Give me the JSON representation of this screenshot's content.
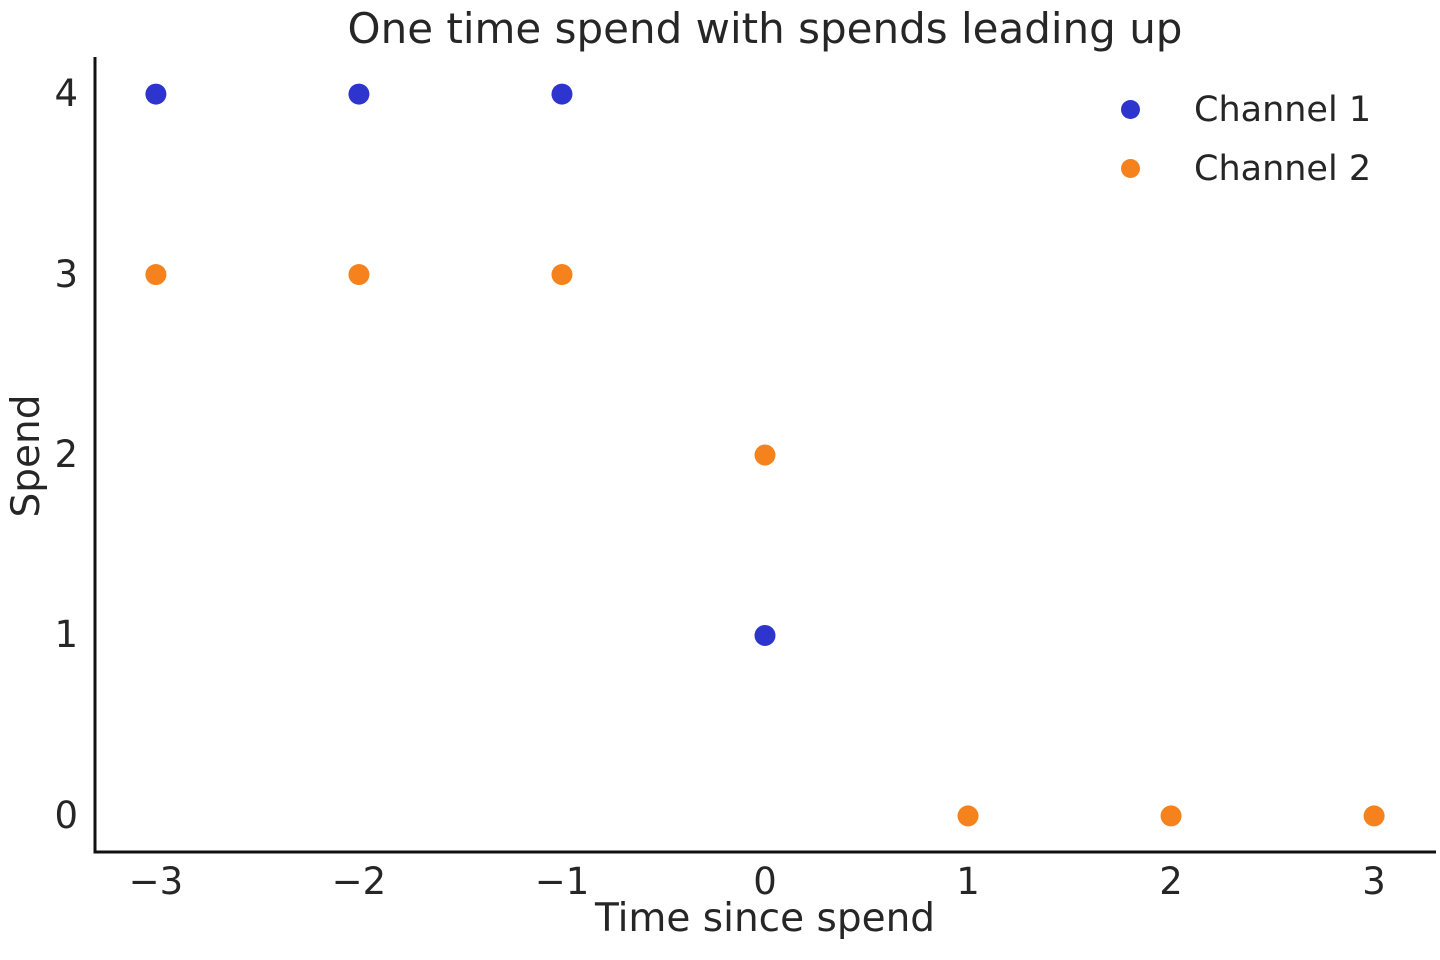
{
  "chart_data": {
    "type": "scatter",
    "title": "One time spend with spends leading up",
    "xlabel": "Time since spend",
    "ylabel": "Spend",
    "xlim": [
      -3.3,
      3.3
    ],
    "ylim": [
      -0.2,
      4.2
    ],
    "xticks": [
      -3,
      -2,
      -1,
      0,
      1,
      2,
      3
    ],
    "xtick_labels": [
      "−3",
      "−2",
      "−1",
      "0",
      "1",
      "2",
      "3"
    ],
    "yticks": [
      0,
      1,
      2,
      3,
      4
    ],
    "ytick_labels": [
      "0",
      "1",
      "2",
      "3",
      "4"
    ],
    "grid": false,
    "legend": {
      "position": "upper right"
    },
    "series": [
      {
        "name": "Channel 1",
        "color": "#2e35cf",
        "marker": "circle",
        "points": [
          [
            -3,
            4
          ],
          [
            -2,
            4
          ],
          [
            -1,
            4
          ],
          [
            0,
            1
          ]
        ]
      },
      {
        "name": "Channel 2",
        "color": "#f6821d",
        "marker": "circle",
        "points": [
          [
            -3,
            3
          ],
          [
            -2,
            3
          ],
          [
            -1,
            3
          ],
          [
            0,
            2
          ],
          [
            1,
            0
          ],
          [
            2,
            0
          ],
          [
            3,
            0
          ]
        ]
      }
    ],
    "colors": {
      "background": "#ffffff",
      "text": "#262626",
      "spine": "#111111"
    }
  }
}
